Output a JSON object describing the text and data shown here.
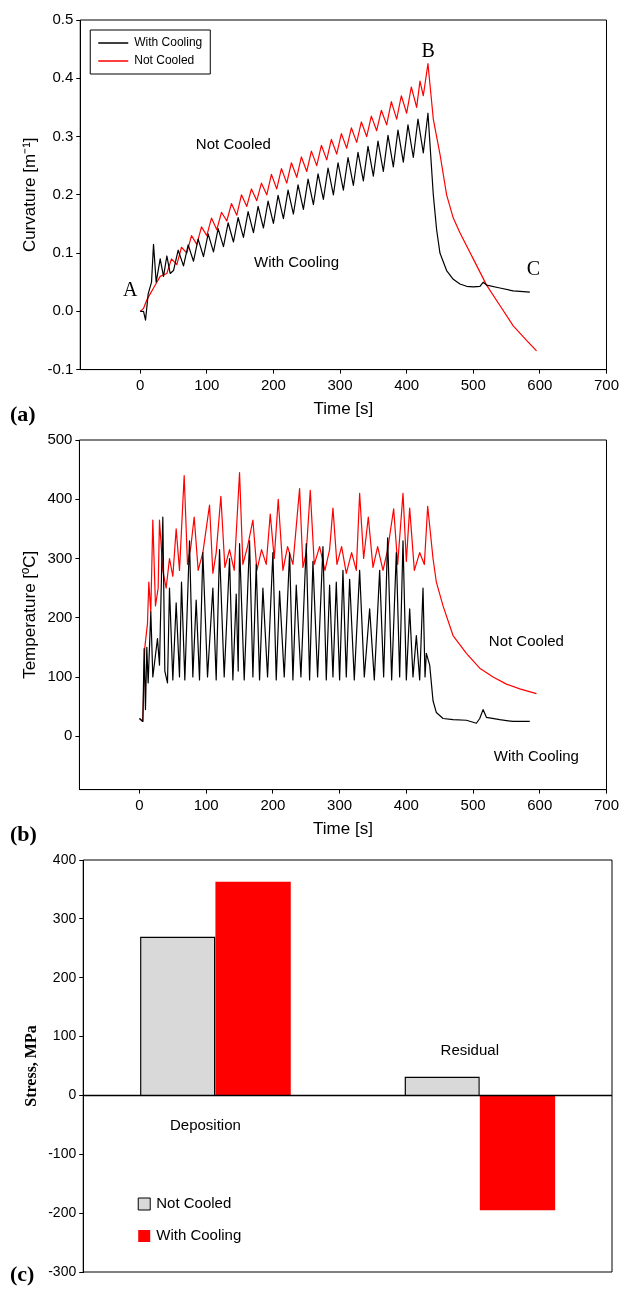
{
  "chart_data": [
    {
      "type": "line",
      "xlabel": "Time [s]",
      "ylabel": "Curvature [m⁻¹]",
      "xlim": [
        -90,
        700
      ],
      "xticks": [
        0,
        100,
        200,
        300,
        400,
        500,
        600,
        700
      ],
      "ylim": [
        -0.1,
        0.5
      ],
      "yticks": [
        -0.1,
        {
          "value": 0,
          "label": "0.0"
        },
        0.1,
        0.2,
        0.3,
        0.4,
        0.5
      ],
      "grid": false,
      "legend": "top left",
      "series": [
        {
          "name": "With Cooling",
          "color": "#000000",
          "x": [
            0,
            5,
            8,
            12,
            17,
            20,
            24,
            30,
            35,
            40,
            45,
            50,
            57,
            65,
            72,
            80,
            87,
            95,
            102,
            110,
            117,
            125,
            132,
            140,
            147,
            155,
            162,
            170,
            177,
            185,
            192,
            200,
            207,
            215,
            222,
            230,
            237,
            245,
            252,
            260,
            267,
            275,
            282,
            290,
            297,
            305,
            312,
            320,
            327,
            335,
            342,
            350,
            357,
            365,
            372,
            380,
            387,
            395,
            402,
            410,
            417,
            425,
            432,
            440,
            445,
            450,
            460,
            470,
            480,
            490,
            500,
            510,
            515,
            520,
            540,
            560,
            585
          ],
          "values": [
            0,
            0,
            -0.015,
            0.03,
            0.05,
            0.115,
            0.05,
            0.09,
            0.06,
            0.095,
            0.065,
            0.07,
            0.105,
            0.078,
            0.114,
            0.086,
            0.124,
            0.094,
            0.133,
            0.102,
            0.142,
            0.111,
            0.152,
            0.119,
            0.161,
            0.127,
            0.171,
            0.135,
            0.18,
            0.143,
            0.189,
            0.151,
            0.199,
            0.159,
            0.208,
            0.167,
            0.217,
            0.175,
            0.227,
            0.183,
            0.236,
            0.192,
            0.246,
            0.2,
            0.255,
            0.208,
            0.264,
            0.216,
            0.273,
            0.224,
            0.283,
            0.232,
            0.292,
            0.24,
            0.302,
            0.248,
            0.311,
            0.256,
            0.32,
            0.264,
            0.33,
            0.272,
            0.34,
            0.2,
            0.14,
            0.1,
            0.07,
            0.055,
            0.047,
            0.043,
            0.042,
            0.043,
            0.05,
            0.045,
            0.04,
            0.035,
            0.033
          ]
        },
        {
          "name": "Not Cooled",
          "color": "#ff0000",
          "x": [
            0,
            5,
            10,
            15,
            20,
            25,
            30,
            40,
            47,
            55,
            62,
            70,
            77,
            85,
            92,
            100,
            107,
            115,
            122,
            130,
            137,
            145,
            152,
            160,
            167,
            175,
            182,
            190,
            197,
            205,
            212,
            220,
            227,
            235,
            242,
            250,
            257,
            265,
            272,
            280,
            287,
            295,
            302,
            310,
            317,
            325,
            332,
            340,
            347,
            355,
            362,
            370,
            377,
            385,
            392,
            400,
            407,
            415,
            420,
            425,
            432,
            440,
            450,
            460,
            470,
            480,
            500,
            520,
            540,
            560,
            580,
            595
          ],
          "values": [
            0,
            0.005,
            0.02,
            0.03,
            0.04,
            0.05,
            0.06,
            0.065,
            0.09,
            0.08,
            0.11,
            0.1,
            0.13,
            0.115,
            0.145,
            0.13,
            0.16,
            0.14,
            0.17,
            0.155,
            0.185,
            0.165,
            0.2,
            0.18,
            0.21,
            0.19,
            0.22,
            0.2,
            0.235,
            0.21,
            0.245,
            0.22,
            0.255,
            0.23,
            0.265,
            0.24,
            0.275,
            0.25,
            0.285,
            0.26,
            0.295,
            0.27,
            0.305,
            0.28,
            0.315,
            0.29,
            0.325,
            0.3,
            0.335,
            0.31,
            0.345,
            0.32,
            0.36,
            0.33,
            0.37,
            0.34,
            0.385,
            0.35,
            0.395,
            0.37,
            0.425,
            0.33,
            0.27,
            0.2,
            0.16,
            0.135,
            0.09,
            0.045,
            0.01,
            -0.025,
            -0.05,
            -0.068
          ]
        }
      ],
      "annotations": [
        "A",
        "B",
        "C",
        "Not Cooled",
        "With Cooling",
        "(a)"
      ]
    },
    {
      "type": "line",
      "xlabel": "Time [s]",
      "ylabel": "Temperature [ºC]",
      "xlim": [
        -90,
        700
      ],
      "xticks": [
        0,
        100,
        200,
        300,
        400,
        500,
        600,
        700
      ],
      "ylim": [
        -90,
        500
      ],
      "yticks": [
        0,
        100,
        200,
        300,
        400,
        500
      ],
      "grid": false,
      "series": [
        {
          "color": "#000000",
          "x": [
            0,
            5,
            7,
            9,
            11,
            13,
            17,
            20,
            27,
            30,
            35,
            38,
            42,
            45,
            50,
            55,
            60,
            63,
            68,
            75,
            80,
            85,
            90,
            95,
            102,
            110,
            115,
            120,
            127,
            135,
            140,
            145,
            148,
            150,
            157,
            165,
            170,
            175,
            180,
            185,
            192,
            200,
            205,
            210,
            217,
            225,
            230,
            235,
            242,
            250,
            255,
            260,
            267,
            275,
            280,
            285,
            290,
            295,
            300,
            305,
            310,
            315,
            322,
            330,
            337,
            345,
            352,
            360,
            366,
            372,
            378,
            385,
            390,
            395,
            400,
            405,
            410,
            415,
            420,
            425,
            428,
            430,
            435,
            440,
            445,
            455,
            470,
            490,
            505,
            510,
            515,
            520,
            540,
            560,
            585
          ],
          "values": [
            30,
            25,
            148,
            45,
            150,
            90,
            210,
            100,
            165,
            120,
            370,
            110,
            90,
            250,
            95,
            225,
            100,
            260,
            95,
            330,
            100,
            230,
            95,
            310,
            100,
            250,
            95,
            315,
            100,
            300,
            95,
            240,
            110,
            325,
            95,
            330,
            100,
            290,
            95,
            250,
            100,
            310,
            95,
            245,
            100,
            310,
            95,
            255,
            100,
            325,
            95,
            295,
            100,
            320,
            95,
            255,
            100,
            260,
            95,
            280,
            100,
            265,
            95,
            280,
            100,
            215,
            95,
            280,
            100,
            335,
            95,
            310,
            100,
            330,
            95,
            215,
            100,
            170,
            95,
            250,
            100,
            140,
            120,
            60,
            40,
            30,
            28,
            27,
            22,
            30,
            45,
            32,
            28,
            25,
            25
          ]
        },
        {
          "color": "#ff0000",
          "x": [
            0,
            5,
            8,
            12,
            14,
            17,
            20,
            24,
            28,
            30,
            35,
            40,
            45,
            50,
            55,
            60,
            67,
            72,
            77,
            82,
            88,
            95,
            105,
            110,
            115,
            122,
            128,
            135,
            142,
            150,
            155,
            162,
            170,
            176,
            183,
            190,
            196,
            202,
            208,
            215,
            222,
            230,
            240,
            245,
            250,
            256,
            262,
            270,
            278,
            285,
            290,
            296,
            303,
            310,
            318,
            325,
            330,
            336,
            343,
            350,
            357,
            365,
            372,
            381,
            387,
            395,
            400,
            405,
            412,
            420,
            427,
            432,
            440,
            445,
            455,
            470,
            490,
            510,
            530,
            550,
            570,
            595
          ],
          "values": [
            30,
            25,
            150,
            190,
            260,
            210,
            365,
            220,
            250,
            365,
            280,
            250,
            300,
            270,
            350,
            280,
            440,
            290,
            320,
            370,
            280,
            310,
            390,
            275,
            310,
            405,
            285,
            315,
            280,
            445,
            290,
            320,
            365,
            280,
            315,
            290,
            375,
            300,
            400,
            280,
            320,
            290,
            418,
            285,
            310,
            415,
            290,
            320,
            280,
            315,
            385,
            290,
            320,
            275,
            310,
            280,
            410,
            300,
            370,
            285,
            320,
            280,
            315,
            384,
            290,
            410,
            295,
            385,
            280,
            310,
            290,
            388,
            300,
            260,
            220,
            170,
            140,
            115,
            100,
            88,
            80,
            72
          ]
        }
      ],
      "annotations": [
        "Not Cooled",
        "With Cooling",
        "(b)"
      ]
    },
    {
      "type": "bar",
      "ylabel": "Stress, MPa",
      "categories": [
        "Deposition",
        "Residual"
      ],
      "ylim": [
        -300,
        400
      ],
      "yticks": [
        -300,
        -200,
        -100,
        0,
        100,
        200,
        300,
        400
      ],
      "grid": false,
      "legend": "bottom left",
      "series": [
        {
          "name": "Not Cooled",
          "color": "#d9d9d9",
          "values": [
            270,
            32
          ]
        },
        {
          "name": "With Cooling",
          "color": "#ff0000",
          "values": [
            363,
            -195
          ]
        }
      ],
      "ref_lines": [
        {
          "axis": "y",
          "value": 0,
          "color": "#000000"
        }
      ],
      "annotations": [
        "(c)"
      ]
    }
  ]
}
